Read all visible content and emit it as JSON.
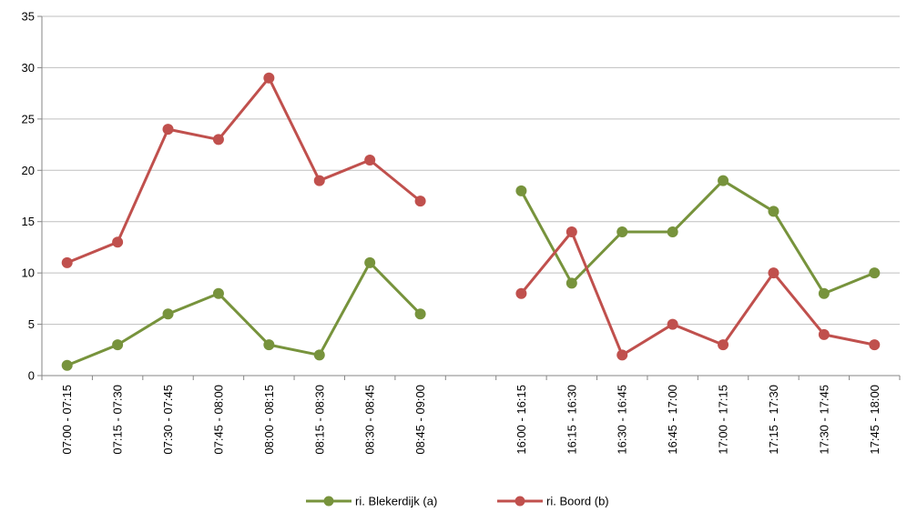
{
  "chart_data": {
    "type": "line",
    "categories": [
      "07:00 - 07:15",
      "07:15 - 07:30",
      "07:30 - 07:45",
      "07:45 - 08:00",
      "08:00 - 08:15",
      "08:15 - 08:30",
      "08:30 - 08:45",
      "08:45 - 09:00",
      "",
      "16:00 - 16:15",
      "16:15 - 16:30",
      "16:30 - 16:45",
      "16:45 - 17:00",
      "17:00 - 17:15",
      "17:15 - 17:30",
      "17:30 - 17:45",
      "17:45 - 18:00"
    ],
    "series": [
      {
        "name": "ri. Blekerdijk (a)",
        "color": "#77933C",
        "values": [
          1,
          3,
          6,
          8,
          3,
          2,
          11,
          6,
          null,
          18,
          9,
          14,
          14,
          19,
          16,
          8,
          10
        ]
      },
      {
        "name": "ri. Boord (b)",
        "color": "#C0504D",
        "values": [
          11,
          13,
          24,
          23,
          29,
          19,
          21,
          17,
          null,
          8,
          14,
          2,
          5,
          3,
          10,
          4,
          3
        ]
      }
    ],
    "ylim": [
      0,
      35
    ],
    "yticks": [
      0,
      5,
      10,
      15,
      20,
      25,
      30,
      35
    ],
    "grid": true,
    "legend": "bottom-center",
    "title": "",
    "xlabel": "",
    "ylabel": ""
  }
}
